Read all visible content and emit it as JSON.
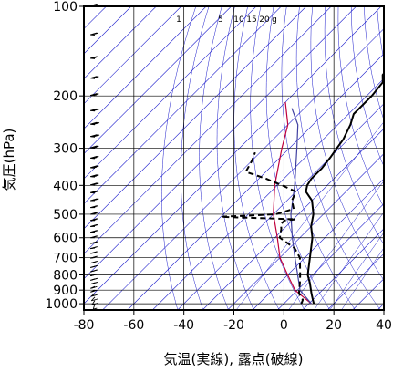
{
  "chart_data": {
    "type": "line",
    "title": "",
    "xlabel": "気温(実線), 露点(破線)",
    "ylabel": "気圧(hPa)",
    "x_axis": {
      "min": -80,
      "max": 40,
      "ticks": [
        -80,
        -60,
        -40,
        -20,
        0,
        20,
        40
      ],
      "tick_labels": [
        "-80",
        "-60",
        "-40",
        "-20",
        "0",
        "20",
        "40"
      ]
    },
    "y_axis": {
      "scale": "log",
      "min": 100,
      "max": 1050,
      "ticks": [
        100,
        200,
        300,
        400,
        500,
        600,
        700,
        800,
        900,
        1000
      ],
      "tick_labels": [
        "100",
        "200",
        "300",
        "400",
        "500",
        "600",
        "700",
        "800",
        "900",
        "1000"
      ]
    },
    "grid": true,
    "mixing_ratio_labels": [
      "1",
      "5",
      "10",
      "15",
      "20",
      "g"
    ],
    "mixing_ratio_values": [
      1,
      5,
      10,
      15,
      20
    ],
    "series": [
      {
        "style": "solid",
        "color": "#000000",
        "points": [
          [
            1000,
            12
          ],
          [
            970,
            10
          ],
          [
            925,
            7
          ],
          [
            850,
            2
          ],
          [
            800,
            -2
          ],
          [
            700,
            -8
          ],
          [
            600,
            -15
          ],
          [
            550,
            -20
          ],
          [
            500,
            -24
          ],
          [
            450,
            -30
          ],
          [
            420,
            -36
          ],
          [
            400,
            -38
          ],
          [
            380,
            -39
          ],
          [
            350,
            -39
          ],
          [
            320,
            -40
          ],
          [
            300,
            -41
          ],
          [
            280,
            -42
          ],
          [
            250,
            -45
          ],
          [
            230,
            -48
          ],
          [
            200,
            -48
          ],
          [
            180,
            -49
          ],
          [
            170,
            -52
          ],
          [
            150,
            -53
          ],
          [
            130,
            -57
          ],
          [
            110,
            -59
          ],
          [
            103,
            -59
          ],
          [
            100,
            -61
          ]
        ]
      },
      {
        "style": "dashed",
        "color": "#000000",
        "points": [
          [
            1000,
            7
          ],
          [
            970,
            6
          ],
          [
            925,
            2
          ],
          [
            850,
            -2
          ],
          [
            800,
            -5
          ],
          [
            700,
            -12
          ],
          [
            650,
            -18
          ],
          [
            600,
            -28
          ],
          [
            560,
            -31
          ],
          [
            540,
            -33
          ],
          [
            525,
            -33
          ],
          [
            520,
            -29
          ],
          [
            515,
            -45
          ],
          [
            512,
            -55
          ],
          [
            510,
            -60
          ],
          [
            505,
            -48
          ],
          [
            500,
            -39
          ],
          [
            480,
            -34
          ],
          [
            450,
            -38
          ],
          [
            420,
            -40
          ],
          [
            400,
            -48
          ],
          [
            380,
            -57
          ],
          [
            360,
            -68
          ],
          [
            330,
            -70
          ],
          [
            310,
            -72
          ]
        ]
      }
    ],
    "parcel_lines": [
      {
        "color": "#c0003c",
        "points": [
          [
            1000,
            11
          ],
          [
            900,
            -1
          ],
          [
            800,
            -10
          ],
          [
            700,
            -20
          ],
          [
            600,
            -29
          ],
          [
            500,
            -40
          ],
          [
            400,
            -51
          ],
          [
            300,
            -63
          ],
          [
            250,
            -70
          ],
          [
            210,
            -80
          ]
        ]
      },
      {
        "color": "#4040a0",
        "points": [
          [
            1000,
            11
          ],
          [
            900,
            1
          ],
          [
            800,
            -6
          ],
          [
            700,
            -14
          ],
          [
            600,
            -23
          ],
          [
            500,
            -33
          ],
          [
            400,
            -43
          ],
          [
            300,
            -57
          ],
          [
            250,
            -66
          ],
          [
            220,
            -75
          ]
        ]
      }
    ],
    "isotherm_color": "#1c1ccc",
    "wind_barbs": {
      "color": "#000000",
      "levels": [
        1000,
        975,
        950,
        925,
        900,
        875,
        850,
        825,
        800,
        775,
        750,
        725,
        700,
        675,
        650,
        625,
        600,
        575,
        550,
        525,
        500,
        475,
        450,
        425,
        400,
        375,
        350,
        325,
        300,
        275,
        250,
        225,
        200,
        175,
        150,
        125,
        100
      ],
      "speeds_kt": [
        5,
        10,
        10,
        15,
        15,
        15,
        20,
        20,
        20,
        20,
        20,
        25,
        25,
        25,
        25,
        30,
        30,
        30,
        30,
        35,
        35,
        35,
        40,
        40,
        40,
        45,
        45,
        45,
        45,
        50,
        50,
        50,
        45,
        40,
        35,
        30,
        25
      ],
      "directions_deg": [
        200,
        220,
        230,
        240,
        250,
        250,
        255,
        255,
        260,
        260,
        260,
        260,
        265,
        265,
        265,
        265,
        270,
        270,
        270,
        270,
        270,
        270,
        270,
        275,
        275,
        275,
        275,
        275,
        275,
        275,
        275,
        275,
        275,
        275,
        275,
        275,
        275
      ]
    }
  }
}
